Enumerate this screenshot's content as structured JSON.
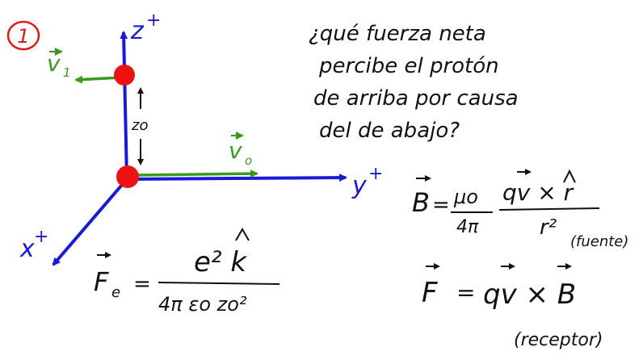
{
  "problem_number": "1",
  "colors": {
    "axis": "#1a1ad6",
    "velocity": "#3a9a1a",
    "proton": "#ee1111",
    "badge": "#e01818",
    "ink": "#111111"
  },
  "axes": {
    "z": "z",
    "y": "y",
    "x": "x",
    "sup": "+"
  },
  "labels": {
    "v1": "v",
    "v1_sub": "1",
    "v0": "v",
    "v0_sub": "o",
    "z0": "zo"
  },
  "question": {
    "line1": "¿qué fuerza neta",
    "line2": "percibe el protón",
    "line3": "de arriba por causa",
    "line4": "del de abajo?"
  },
  "formulas": {
    "b_lhs": "B",
    "b_eq": "=",
    "b_mu": "μo",
    "b_4pi": "4π",
    "b_num": "qv × r",
    "b_den": "r²",
    "b_note": "(fuente)",
    "fe_lhs": "F",
    "fe_sub": "e",
    "fe_eq": "=",
    "fe_num": "e² k",
    "fe_den": "4π εo zo²",
    "f_lhs": "F",
    "f_eq": "=",
    "f_rhs": "qv × B",
    "f_note": "(receptor)"
  }
}
